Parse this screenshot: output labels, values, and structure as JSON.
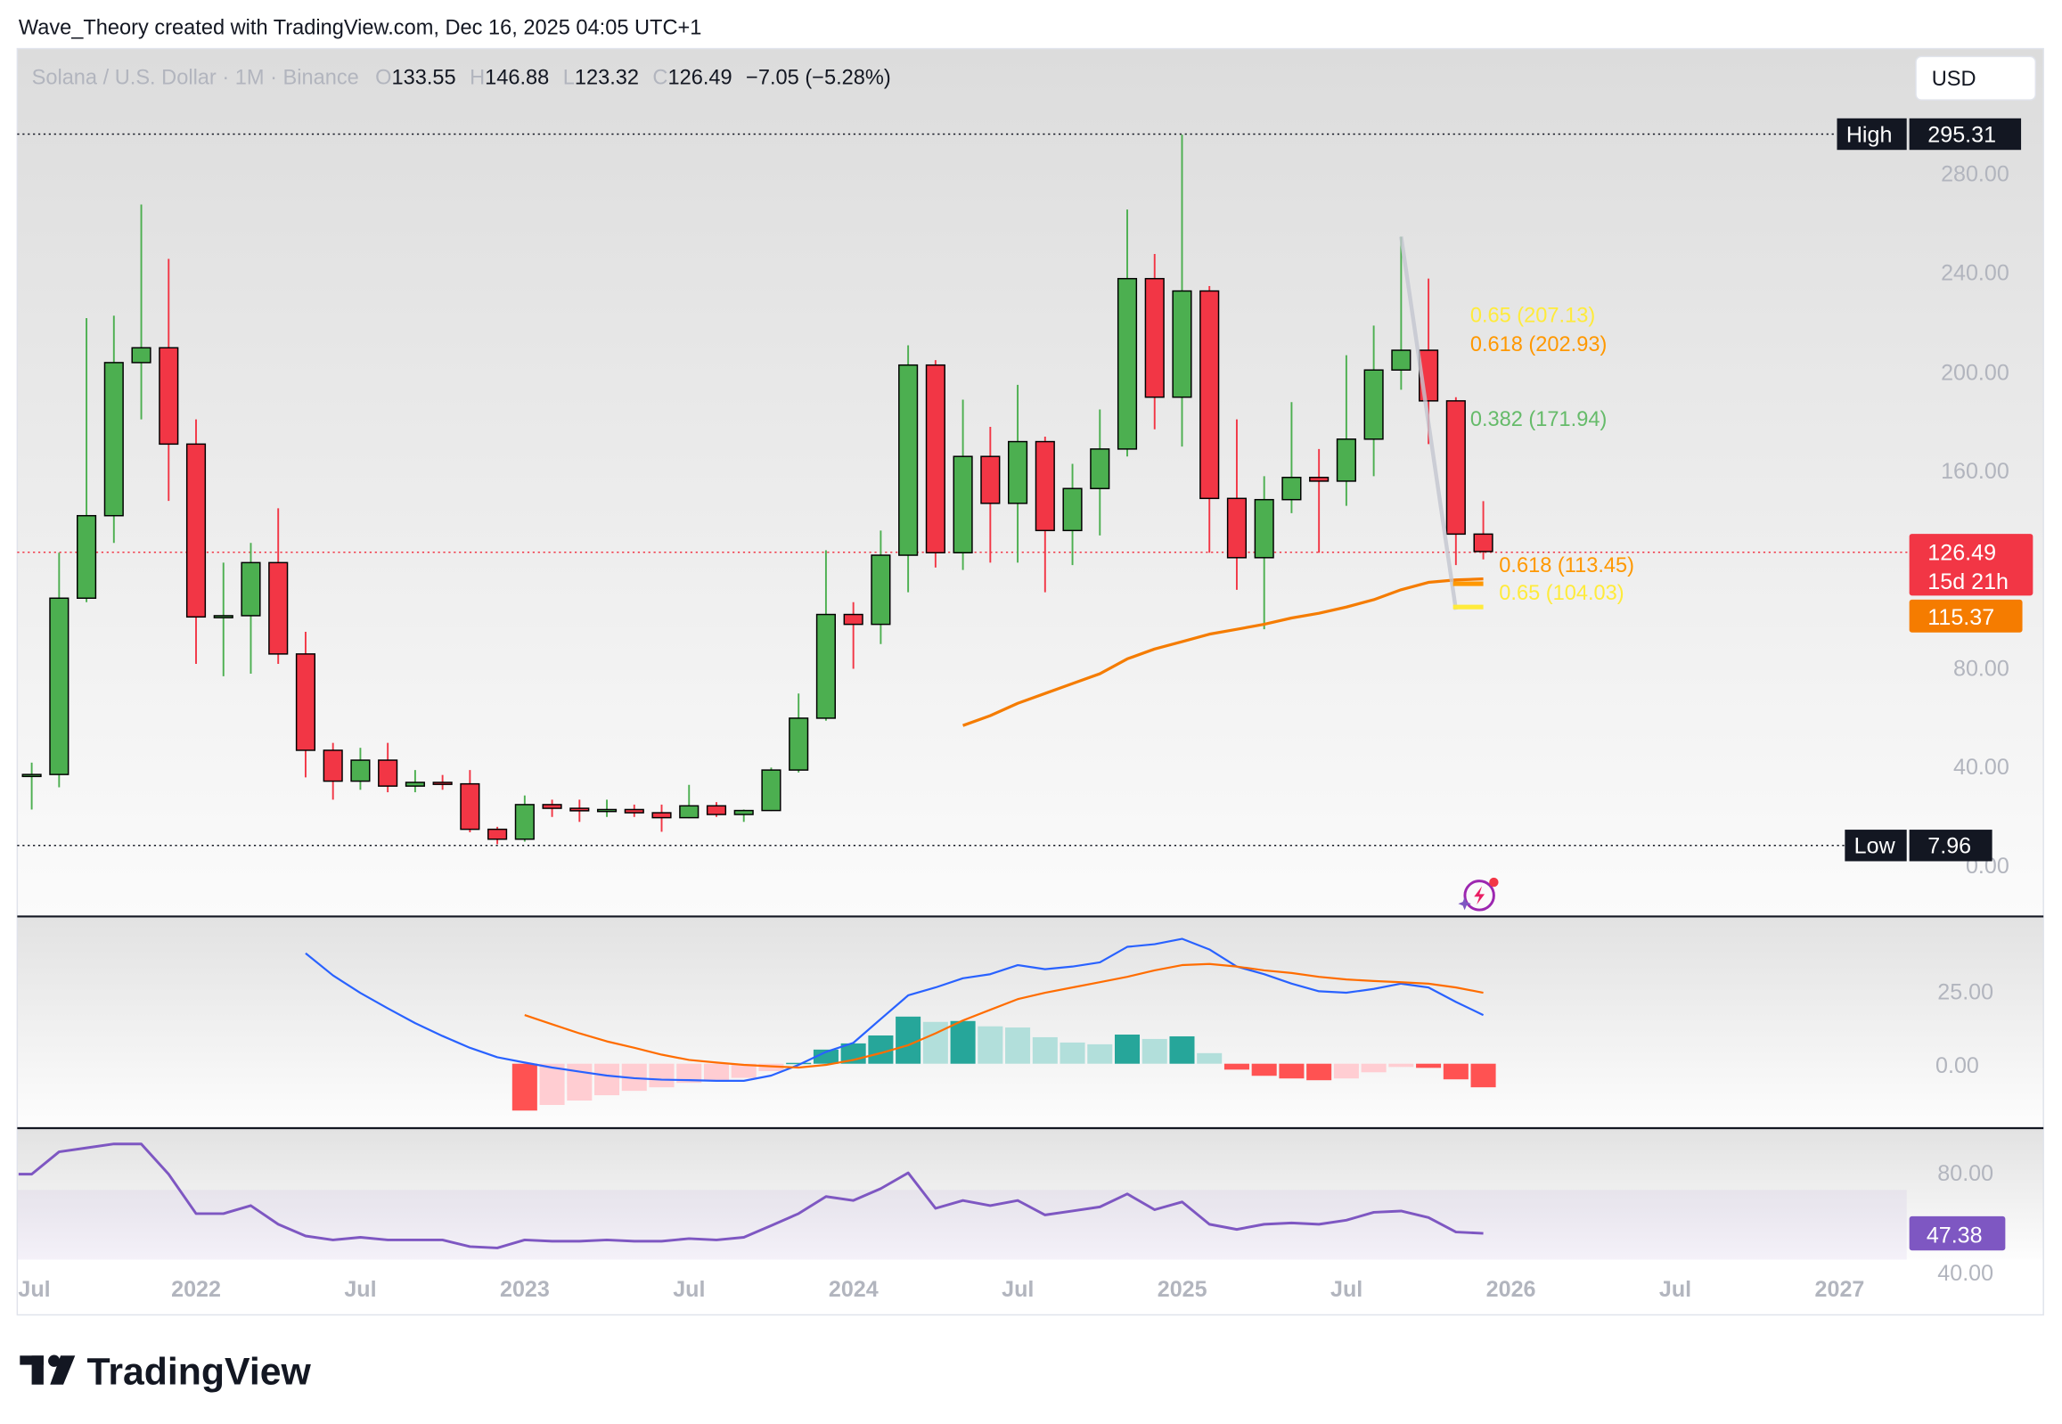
{
  "header": {
    "attribution": "Wave_Theory created with TradingView.com, Dec 16, 2025 04:05 UTC+1"
  },
  "legend": {
    "symbol": "Solana / U.S. Dollar · 1M · Binance",
    "o_label": "O",
    "o": "133.55",
    "h_label": "H",
    "h": "146.88",
    "l_label": "L",
    "l": "123.32",
    "c_label": "C",
    "c": "126.49",
    "change": "−7.05 (−5.28%)"
  },
  "currency_button": "USD",
  "price_axis": [
    "280.00",
    "240.00",
    "200.00",
    "160.00",
    "80.00",
    "40.00",
    "0.00"
  ],
  "markers": {
    "high_label": "High",
    "high_value": "295.31",
    "low_label": "Low",
    "low_value": "7.96",
    "last_price": "126.49",
    "countdown": "15d 21h",
    "ema_value": "115.37"
  },
  "fib_labels": {
    "upper_065": "0.65 (207.13)",
    "upper_0618": "0.618 (202.93)",
    "upper_0382": "0.382 (171.94)",
    "lower_0618": "0.618 (113.45)",
    "lower_065": "0.65 (104.03)"
  },
  "macd_axis": [
    "25.00",
    "0.00"
  ],
  "rsi_axis": {
    "upper": "80.00",
    "lower": "40.00",
    "current": "47.38"
  },
  "time_axis": [
    "Jul",
    "2022",
    "Jul",
    "2023",
    "Jul",
    "2024",
    "Jul",
    "2025",
    "Jul",
    "2026",
    "Jul",
    "2027"
  ],
  "footer": {
    "brand": "TradingView"
  },
  "colors": {
    "up": "#4caf50",
    "down": "#f23645",
    "ema": "#f57c00",
    "macd": "#2962ff",
    "signal": "#ff6d00",
    "rsi": "#7e57c2",
    "fib_0618": "#ff9800",
    "fib_065": "#ffeb3b",
    "fib_0382": "#66bb6a"
  },
  "chart_data": [
    {
      "type": "candlestick",
      "ylim": [
        0,
        295.31
      ],
      "columns": [
        "date",
        "open",
        "high",
        "low",
        "close"
      ],
      "candles": [
        [
          "2021-07",
          35.5,
          41,
          22,
          36.2
        ],
        [
          "2021-08",
          36.2,
          126,
          31,
          107.6
        ],
        [
          "2021-09",
          107.6,
          221,
          106,
          141
        ],
        [
          "2021-10",
          141,
          222,
          130,
          203
        ],
        [
          "2021-11",
          203,
          267,
          180,
          209
        ],
        [
          "2021-12",
          209,
          245,
          147,
          170
        ],
        [
          "2022-01",
          170,
          180,
          81,
          100
        ],
        [
          "2022-02",
          100,
          122,
          76,
          100.5
        ],
        [
          "2022-03",
          100.5,
          130,
          77,
          122
        ],
        [
          "2022-04",
          122,
          144,
          81,
          85
        ],
        [
          "2022-05",
          85,
          94,
          35,
          46
        ],
        [
          "2022-06",
          46,
          49,
          26,
          33.5
        ],
        [
          "2022-07",
          33.5,
          47,
          30,
          42
        ],
        [
          "2022-08",
          42,
          49,
          29,
          31.5
        ],
        [
          "2022-09",
          31.5,
          38,
          29,
          33
        ],
        [
          "2022-10",
          33,
          36,
          30,
          32.4
        ],
        [
          "2022-11",
          32.4,
          38,
          12.8,
          14
        ],
        [
          "2022-12",
          14,
          15,
          7.96,
          10
        ],
        [
          "2023-01",
          10,
          27.7,
          9,
          24
        ],
        [
          "2023-02",
          24,
          26,
          19,
          22.5
        ],
        [
          "2023-03",
          22.5,
          26,
          17,
          21.5
        ],
        [
          "2023-04",
          21.5,
          26,
          19,
          22
        ],
        [
          "2023-05",
          22,
          24,
          19,
          20.7
        ],
        [
          "2023-06",
          20.7,
          24,
          13,
          18.7
        ],
        [
          "2023-07",
          18.7,
          32,
          18.5,
          23.5
        ],
        [
          "2023-08",
          23.5,
          25,
          19,
          20
        ],
        [
          "2023-09",
          20,
          22,
          17,
          21.6
        ],
        [
          "2023-10",
          21.6,
          39,
          21.4,
          38
        ],
        [
          "2023-11",
          38,
          69,
          37,
          59
        ],
        [
          "2023-12",
          59,
          127,
          58,
          101
        ],
        [
          "2024-01",
          101,
          106,
          79,
          97
        ],
        [
          "2024-02",
          97,
          135,
          89,
          125
        ],
        [
          "2024-03",
          125,
          210,
          110,
          202
        ],
        [
          "2024-04",
          202,
          204,
          120,
          126
        ],
        [
          "2024-05",
          126,
          188,
          119,
          165
        ],
        [
          "2024-06",
          165,
          177,
          122,
          146
        ],
        [
          "2024-07",
          146,
          194,
          122,
          171
        ],
        [
          "2024-08",
          171,
          173,
          110,
          135
        ],
        [
          "2024-09",
          135,
          162,
          121,
          152
        ],
        [
          "2024-10",
          152,
          184,
          133,
          168
        ],
        [
          "2024-11",
          168,
          265,
          165,
          237
        ],
        [
          "2024-12",
          237,
          247,
          176,
          189
        ],
        [
          "2025-01",
          189,
          295.31,
          169,
          232
        ],
        [
          "2025-02",
          232,
          234,
          126,
          148
        ],
        [
          "2025-03",
          148,
          180,
          111,
          124
        ],
        [
          "2025-04",
          124,
          157,
          95,
          147.5
        ],
        [
          "2025-05",
          147.5,
          187,
          142,
          156.5
        ],
        [
          "2025-06",
          156.5,
          168,
          126,
          155
        ],
        [
          "2025-07",
          155,
          206,
          145,
          172
        ],
        [
          "2025-08",
          172,
          218,
          157,
          200
        ],
        [
          "2025-09",
          200,
          254,
          192,
          208
        ],
        [
          "2025-10",
          208,
          237,
          170,
          187.5
        ],
        [
          "2025-11",
          187.5,
          189,
          121,
          133.55
        ],
        [
          "2025-12",
          133.55,
          146.88,
          123.32,
          126.49
        ]
      ],
      "ema": {
        "start": "2024-05",
        "values": [
          56,
          60,
          65,
          69,
          73,
          77,
          83,
          87,
          90,
          93,
          95,
          97,
          99.6,
          101.5,
          104,
          107,
          111,
          114,
          115,
          115.37
        ]
      },
      "fib_swing": {
        "from": [
          "2025-09",
          254
        ],
        "to": [
          "2025-11",
          104
        ]
      },
      "fib_levels": [
        {
          "ratio": 0.65,
          "value": 207.13
        },
        {
          "ratio": 0.618,
          "value": 202.93
        },
        {
          "ratio": 0.382,
          "value": 171.94
        },
        {
          "ratio": 0.618,
          "value": 113.45
        },
        {
          "ratio": 0.65,
          "value": 104.03
        }
      ]
    },
    {
      "type": "macd",
      "macd": {
        "start": "2022-05",
        "values": [
          37.5,
          30,
          24,
          18.8,
          13.8,
          9.4,
          5.4,
          2.2,
          0.4,
          -1.3,
          -2.7,
          -4,
          -4.9,
          -5.4,
          -5.6,
          -5.8,
          -5.8,
          -4,
          -0.4,
          4,
          7.1,
          15.2,
          23.2,
          25.9,
          29,
          30.4,
          33.5,
          32.1,
          33,
          34.4,
          39.7,
          40.6,
          42.4,
          38.8,
          33,
          30.4,
          27.2,
          24.6,
          24.1,
          25.4,
          27.2,
          25.9,
          21,
          16.5
        ]
      },
      "signal": {
        "start": "2023-01",
        "values": [
          16.5,
          13.4,
          10.3,
          7.6,
          5.4,
          3.1,
          1.3,
          0.4,
          -0.4,
          -0.9,
          -1.3,
          -0.4,
          1.3,
          3.6,
          6.3,
          10.3,
          14.7,
          18.3,
          21.9,
          24.1,
          25.9,
          27.7,
          29.5,
          31.7,
          33.5,
          33.9,
          33,
          31.7,
          30.8,
          29.5,
          28.6,
          28.1,
          27.7,
          27.2,
          25.9,
          24.1
        ]
      },
      "histogram": {
        "start": "2023-01",
        "values": [
          -15.9,
          -14,
          -12.5,
          -10.7,
          -9.2,
          -8,
          -6.5,
          -5.5,
          -4.8,
          -2.5,
          0.3,
          4.8,
          6.9,
          9.6,
          16,
          14.2,
          14.5,
          12.7,
          12.3,
          9,
          7.2,
          6.6,
          9.9,
          8.4,
          9.3,
          3.6,
          -2,
          -4.1,
          -5,
          -5.6,
          -5,
          -2.9,
          -1.1,
          -1.4,
          -5.3,
          -8
        ]
      }
    },
    {
      "type": "line",
      "rsi": {
        "start": "2021-07",
        "values": [
          78.6,
          90.4,
          92.5,
          94.6,
          94.6,
          78.6,
          57.8,
          57.8,
          62,
          52.2,
          46,
          43.9,
          45.3,
          43.9,
          43.9,
          43.9,
          40.4,
          39.7,
          43.9,
          43.2,
          43.2,
          43.9,
          43.2,
          43.2,
          44.6,
          43.9,
          45.3,
          51.5,
          57.8,
          66.8,
          64.7,
          71,
          79.3,
          60.6,
          64.7,
          62,
          64.7,
          57.1,
          59.2,
          61.3,
          68.2,
          59.9,
          64,
          52.2,
          49.5,
          52.2,
          52.9,
          52.2,
          54.3,
          58.5,
          59.2,
          55.7,
          48.1,
          47.38
        ]
      }
    }
  ]
}
